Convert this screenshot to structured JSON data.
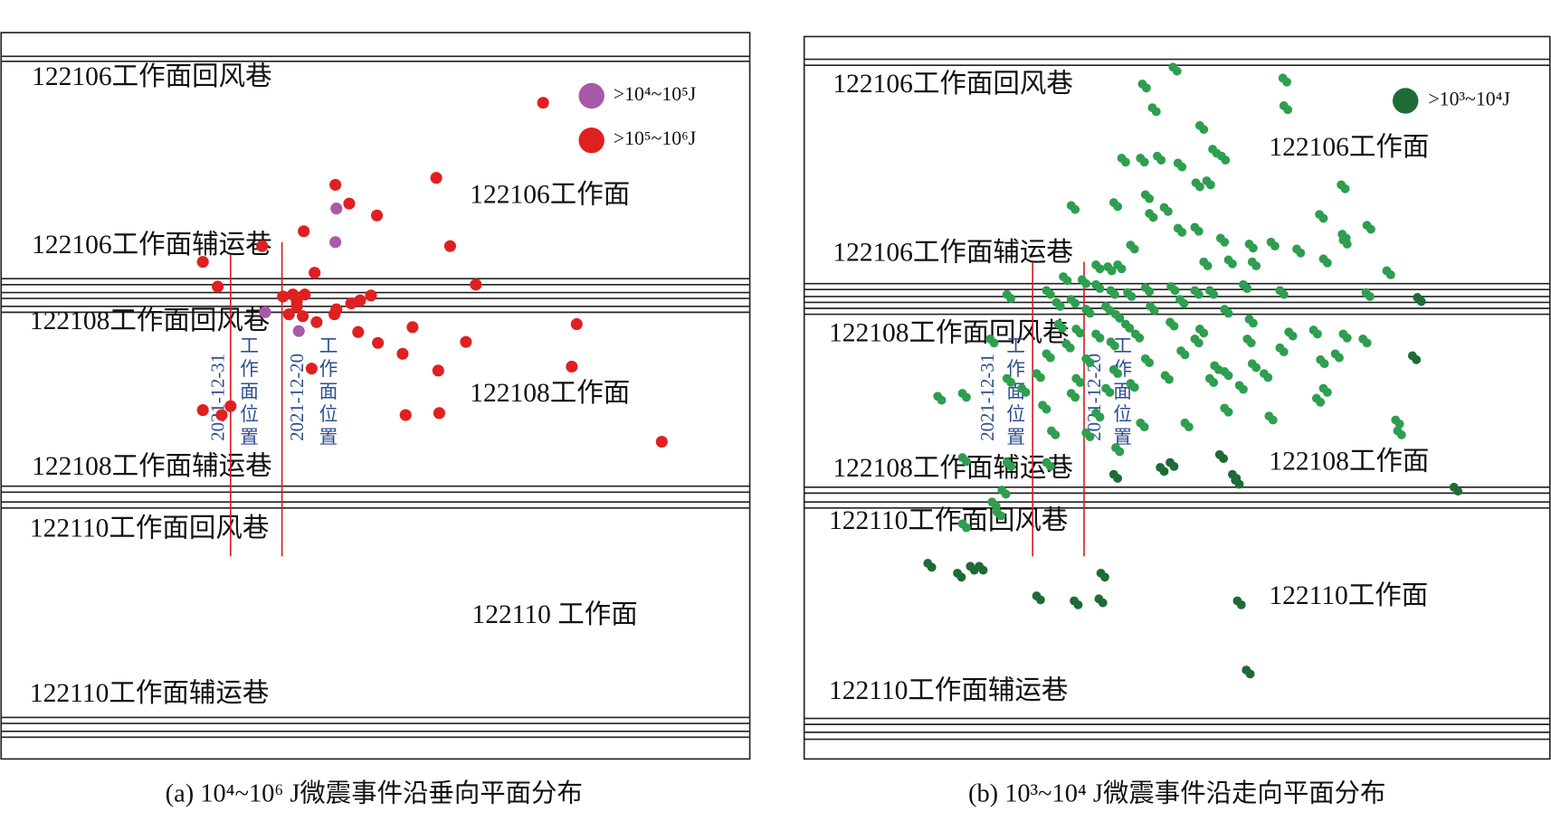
{
  "panels": [
    {
      "labels": [
        "122106工作面回风巷",
        "122106工作面",
        "122106工作面辅运巷",
        "122108工作面回风巷",
        "122108工作面",
        "122108工作面辅运巷",
        "122110工作面回风巷",
        "122110 工作面",
        "122110工作面辅运巷"
      ],
      "legend": [
        ">10⁴~10⁵J",
        ">10⁵~10⁶J"
      ],
      "date_markers": [
        {
          "date": "2021-12-31",
          "label": "工作面位置"
        },
        {
          "date": "2021-12-20",
          "label": "工作面位置"
        }
      ],
      "caption": "(a) 10⁴~10⁶ J微震事件沿垂向平面分布"
    },
    {
      "labels": [
        "122106工作面回风巷",
        "122106工作面",
        "122106工作面辅运巷",
        "122108工作面回风巷",
        "122108工作面辅运巷",
        "122108工作面",
        "122110工作面回风巷",
        "122110工作面",
        "122110工作面辅运巷"
      ],
      "legend": [
        ">10³~10⁴J"
      ],
      "date_markers": [
        {
          "date": "2021-12-31",
          "label": "工作面位置"
        },
        {
          "date": "2021-12-20",
          "label": "工作面位置"
        }
      ],
      "caption": "(b) 10³~10⁴ J微震事件沿走向平面分布"
    }
  ]
}
